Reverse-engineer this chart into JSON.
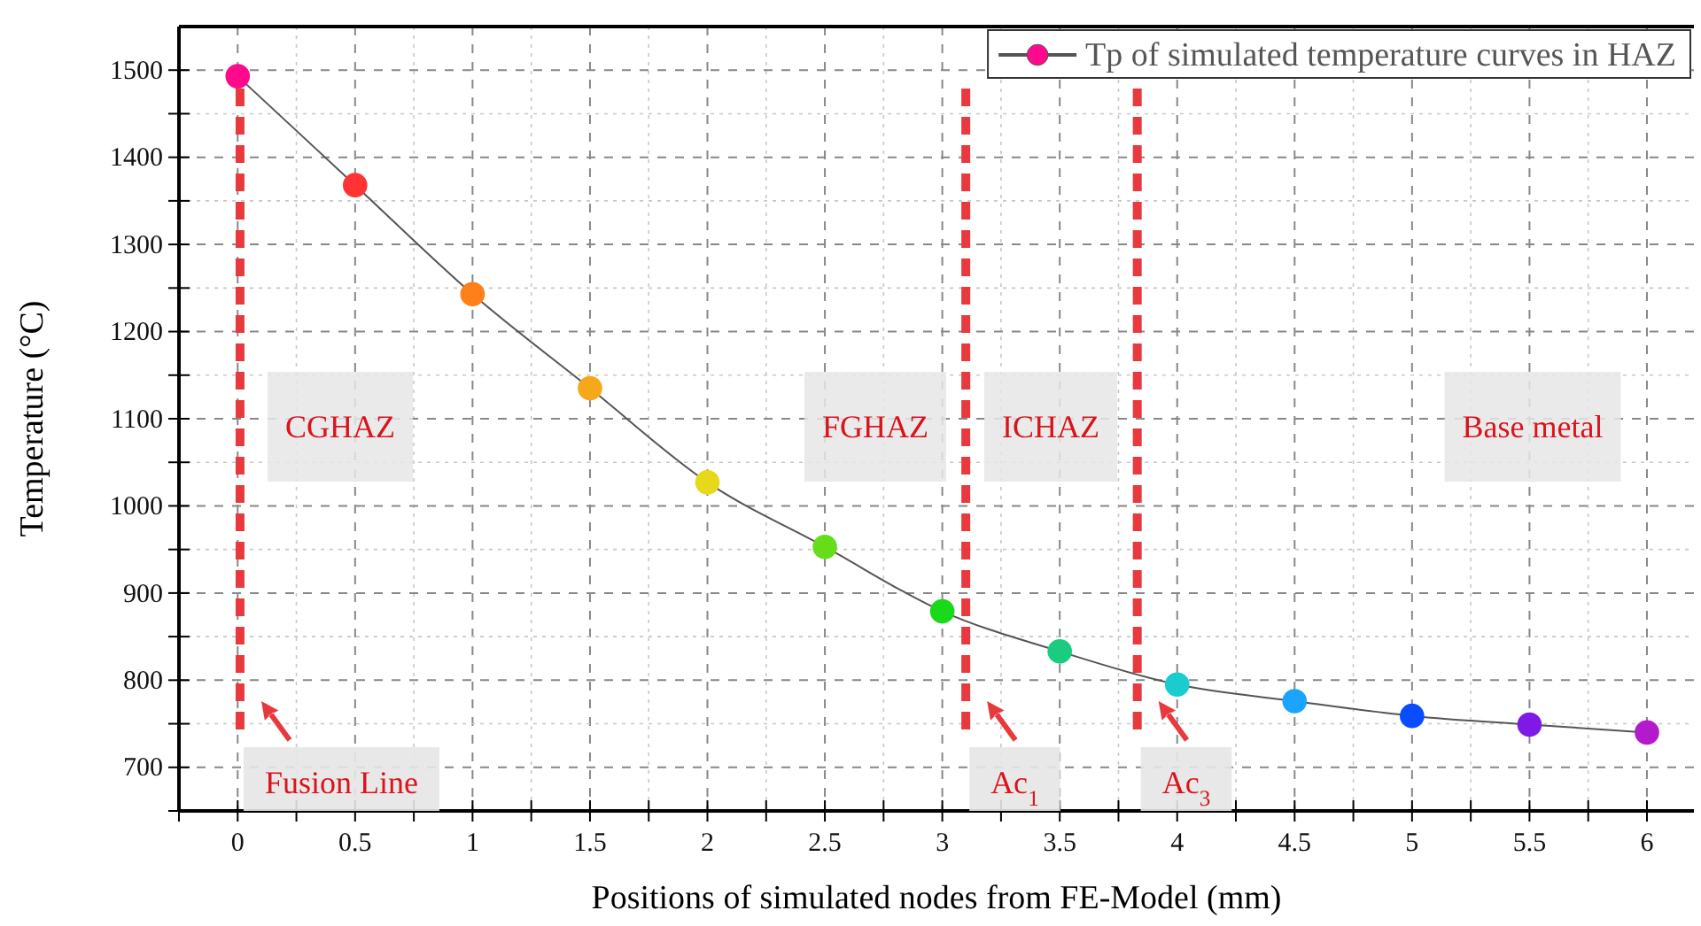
{
  "chart_data": {
    "type": "line",
    "xlabel": "Positions of simulated nodes from FE-Model (mm)",
    "ylabel": "Temperature (°C)",
    "x": [
      0,
      0.5,
      1,
      1.5,
      2,
      2.5,
      3,
      3.5,
      4,
      4.5,
      5,
      5.5,
      6
    ],
    "series": [
      {
        "name": "Tp of simulated temperature curves in HAZ",
        "color": "#555555",
        "colors": [
          "#ff0a8c",
          "#ff3333",
          "#ff7f1a",
          "#f5a91a",
          "#e6d81a",
          "#66dd1a",
          "#1ad81a",
          "#1acc7f",
          "#1accd0",
          "#1aa3ff",
          "#0a4cff",
          "#7f1ae6",
          "#b31acc"
        ],
        "values": [
          1493,
          1368,
          1243,
          1135,
          1027,
          953,
          879,
          833,
          795,
          776,
          759,
          749,
          740
        ]
      }
    ],
    "xlim": [
      -0.25,
      6.2
    ],
    "ylim": [
      650,
      1550
    ],
    "xticks": [
      {
        "value": -0.25,
        "label": null
      },
      0,
      {
        "value": 0.25,
        "label": null
      },
      0.5,
      {
        "value": 0.75,
        "label": null
      },
      1,
      {
        "value": 1.25,
        "label": null
      },
      1.5,
      {
        "value": 1.75,
        "label": null
      },
      2,
      {
        "value": 2.25,
        "label": null
      },
      2.5,
      {
        "value": 2.75,
        "label": null
      },
      3,
      {
        "value": 3.25,
        "label": null
      },
      3.5,
      {
        "value": 3.75,
        "label": null
      },
      4,
      {
        "value": 4.25,
        "label": null
      },
      4.5,
      {
        "value": 4.75,
        "label": null
      },
      5,
      {
        "value": 5.25,
        "label": null
      },
      5.5,
      {
        "value": 5.75,
        "label": null
      },
      6
    ],
    "yticks": [
      {
        "value": 650,
        "label": null
      },
      700,
      {
        "value": 750,
        "label": null
      },
      800,
      {
        "value": 850,
        "label": null
      },
      900,
      {
        "value": 950,
        "label": null
      },
      1000,
      {
        "value": 1050,
        "label": null
      },
      1100,
      {
        "value": 1150,
        "label": null
      },
      1200,
      {
        "value": 1250,
        "label": null
      },
      1300,
      {
        "value": 1350,
        "label": null
      },
      1400,
      {
        "value": 1450,
        "label": null
      },
      1500
    ],
    "grid": true,
    "legend": "top right",
    "marker": "circle",
    "line_style": "solid",
    "ref_lines": [
      {
        "axis": "x",
        "value": 0.01,
        "color": "#e8393e",
        "line_style": "dashed"
      },
      {
        "axis": "x",
        "value": 3.1,
        "color": "#e8393e",
        "line_style": "dashed"
      },
      {
        "axis": "x",
        "value": 3.83,
        "color": "#e8393e",
        "line_style": "dashed"
      }
    ],
    "annotations": [
      "Fusion Line",
      "Ac$_{1}$",
      "Ac$_{3}$",
      "CGHAZ",
      "FGHAZ",
      "ICHAZ",
      "Base metal"
    ]
  }
}
